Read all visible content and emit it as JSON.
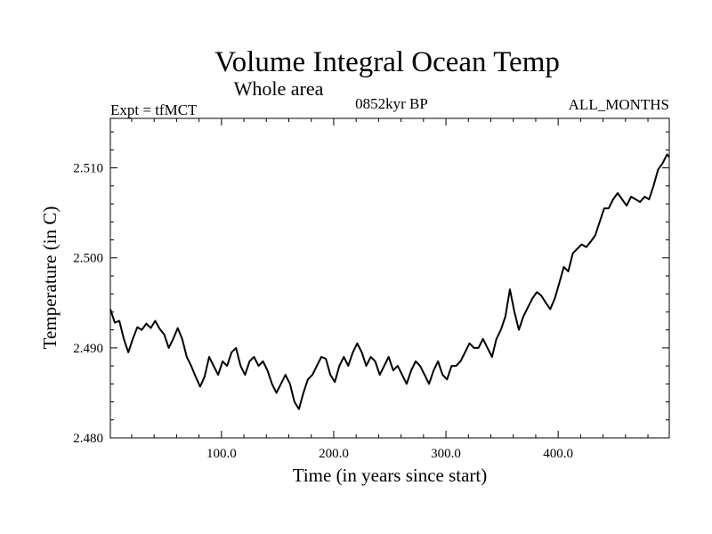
{
  "chart_data": {
    "type": "line",
    "title": "Volume Integral Ocean Temp",
    "subtitle": "Whole area",
    "annotations": {
      "left": "Expt = tfMCT",
      "center": "0852kyr BP",
      "right": "ALL_MONTHS"
    },
    "xlabel": "Time (in years since start)",
    "ylabel": "Temperature (in C)",
    "xlim": [
      1,
      499
    ],
    "ylim": [
      2.48,
      2.5155
    ],
    "xticks": [
      100,
      200,
      300,
      400
    ],
    "xtick_labels": [
      "100.0",
      "200.0",
      "300.0",
      "400.0"
    ],
    "yticks": [
      2.48,
      2.49,
      2.5,
      2.51
    ],
    "ytick_labels": [
      "2.480",
      "2.490",
      "2.500",
      "2.510"
    ],
    "grid": false,
    "series": [
      {
        "name": "tfMCT",
        "x": [
          1,
          5,
          9,
          13,
          17,
          21,
          25,
          29,
          33,
          37,
          41,
          45,
          49,
          53,
          57,
          61,
          65,
          69,
          73,
          77,
          81,
          85,
          89,
          93,
          97,
          101,
          105,
          109,
          113,
          117,
          121,
          125,
          129,
          133,
          137,
          141,
          145,
          149,
          153,
          157,
          161,
          165,
          169,
          173,
          177,
          181,
          185,
          189,
          193,
          197,
          201,
          205,
          209,
          213,
          217,
          221,
          225,
          229,
          233,
          237,
          241,
          245,
          249,
          253,
          257,
          261,
          265,
          269,
          273,
          277,
          281,
          285,
          289,
          293,
          297,
          301,
          305,
          309,
          313,
          317,
          321,
          325,
          329,
          333,
          337,
          341,
          345,
          349,
          353,
          357,
          361,
          365,
          369,
          373,
          377,
          381,
          385,
          389,
          393,
          397,
          401,
          405,
          409,
          413,
          417,
          421,
          425,
          429,
          433,
          437,
          441,
          445,
          449,
          453,
          457,
          461,
          465,
          469,
          473,
          477,
          481,
          485,
          489,
          493,
          497,
          499
        ],
        "values": [
          2.4943,
          2.4928,
          2.493,
          2.491,
          2.4895,
          2.491,
          2.4923,
          2.492,
          2.4927,
          2.4922,
          2.493,
          2.4921,
          2.4915,
          2.49,
          2.491,
          2.4922,
          2.491,
          2.489,
          2.488,
          2.4868,
          2.4857,
          2.4868,
          2.489,
          2.488,
          2.487,
          2.4885,
          2.488,
          2.4895,
          2.49,
          2.488,
          2.487,
          2.4885,
          2.489,
          2.488,
          2.4885,
          2.4875,
          2.486,
          2.485,
          2.486,
          2.487,
          2.486,
          2.484,
          2.4832,
          2.485,
          2.4865,
          2.487,
          2.488,
          2.489,
          2.4888,
          2.487,
          2.4862,
          2.488,
          2.489,
          2.488,
          2.4895,
          2.4905,
          2.4895,
          2.488,
          2.489,
          2.4885,
          2.487,
          2.488,
          2.489,
          2.4875,
          2.488,
          2.487,
          2.486,
          2.4875,
          2.4885,
          2.488,
          2.487,
          2.486,
          2.4875,
          2.4885,
          2.487,
          2.4865,
          2.488,
          2.488,
          2.4885,
          2.4895,
          2.4905,
          2.49,
          2.49,
          2.491,
          2.49,
          2.489,
          2.491,
          2.492,
          2.4935,
          2.4965,
          2.494,
          2.492,
          2.4935,
          2.4945,
          2.4955,
          2.4962,
          2.4958,
          2.495,
          2.4943,
          2.4955,
          2.4972,
          2.499,
          2.4985,
          2.5005,
          2.501,
          2.5015,
          2.5012,
          2.5018,
          2.5025,
          2.504,
          2.5055,
          2.5055,
          2.5065,
          2.5072,
          2.5065,
          2.5058,
          2.5068,
          2.5065,
          2.5062,
          2.5068,
          2.5065,
          2.508,
          2.5098,
          2.5105,
          2.5115,
          2.5112
        ]
      }
    ]
  }
}
